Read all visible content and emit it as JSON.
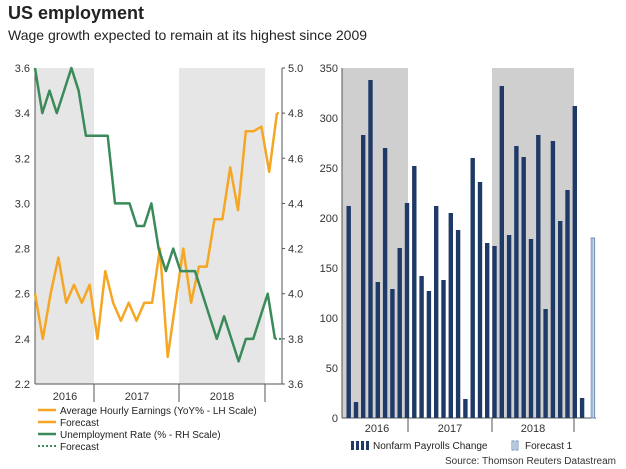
{
  "header": {
    "title": "US employment",
    "subtitle": "Wage growth expected to remain at its highest since 2009"
  },
  "source": "Source: Thomson Reuters Datastream",
  "colors": {
    "earnings": "#f5a623",
    "unemployment": "#3a8a5a",
    "payrolls": "#1f3a66",
    "shade": "#e6e6e6",
    "shade_right": "#cfcfcf"
  },
  "chart_data": [
    {
      "type": "line",
      "title": "",
      "x_ticks": [
        "2016",
        "2017",
        "2018"
      ],
      "y_left": {
        "range": [
          2.2,
          3.6
        ],
        "ticks": [
          "2.2",
          "2.4",
          "2.6",
          "2.8",
          "3.0",
          "3.2",
          "3.4",
          "3.6"
        ]
      },
      "y_right": {
        "range": [
          3.6,
          5.0
        ],
        "ticks": [
          "3.6",
          "3.8",
          "4.0",
          "4.2",
          "4.4",
          "4.6",
          "4.8",
          "5.0"
        ]
      },
      "shaded_years": [
        "2016",
        "2018"
      ],
      "legend": [
        "Average Hourly Earnings (YoY% - LH Scale)",
        "Forecast",
        "Unemployment Rate (% - RH Scale)",
        "Forecast"
      ],
      "series": [
        {
          "name": "Average Hourly Earnings (YoY% - LH Scale)",
          "axis": "left",
          "values": [
            2.6,
            2.4,
            2.6,
            2.76,
            2.56,
            2.64,
            2.56,
            2.64,
            2.4,
            2.7,
            2.56,
            2.48,
            2.56,
            2.48,
            2.56,
            2.56,
            2.8,
            2.32,
            2.56,
            2.8,
            2.56,
            2.72,
            2.72,
            2.93,
            2.93,
            3.16,
            2.97,
            3.32,
            3.32,
            3.34,
            3.14,
            3.4
          ]
        },
        {
          "name": "Forecast",
          "axis": "left",
          "values": [
            3.4,
            3.4
          ],
          "start_index": 31
        },
        {
          "name": "Unemployment Rate (% - RH Scale)",
          "axis": "right",
          "values": [
            5.0,
            4.8,
            4.9,
            4.8,
            4.9,
            5.0,
            4.9,
            4.7,
            4.7,
            4.7,
            4.7,
            4.4,
            4.4,
            4.4,
            4.3,
            4.3,
            4.4,
            4.2,
            4.1,
            4.2,
            4.1,
            4.1,
            4.1,
            4.0,
            3.9,
            3.8,
            3.9,
            3.8,
            3.7,
            3.8,
            3.8,
            3.9,
            4.0,
            3.8
          ]
        },
        {
          "name": "Forecast",
          "axis": "right",
          "values": [
            3.8,
            3.8
          ],
          "start_index": 33
        }
      ]
    },
    {
      "type": "bar",
      "title": "",
      "x_ticks": [
        "2016",
        "2017",
        "2018"
      ],
      "ylim": [
        0,
        350
      ],
      "y_ticks": [
        "0",
        "50",
        "100",
        "150",
        "200",
        "250",
        "300",
        "350"
      ],
      "shaded_years": [
        "2016",
        "2018"
      ],
      "legend": [
        "Nonfarm Payrolls Change",
        "Forecast 1"
      ],
      "series": [
        {
          "name": "Nonfarm Payrolls Change",
          "values": [
            212,
            16,
            283,
            338,
            136,
            270,
            129,
            170,
            215,
            252,
            142,
            127,
            212,
            138,
            205,
            188,
            19,
            260,
            236,
            175,
            172,
            332,
            183,
            272,
            261,
            179,
            283,
            109,
            277,
            197,
            228,
            312,
            20
          ]
        },
        {
          "name": "Forecast 1",
          "values": [
            180
          ]
        }
      ]
    }
  ]
}
